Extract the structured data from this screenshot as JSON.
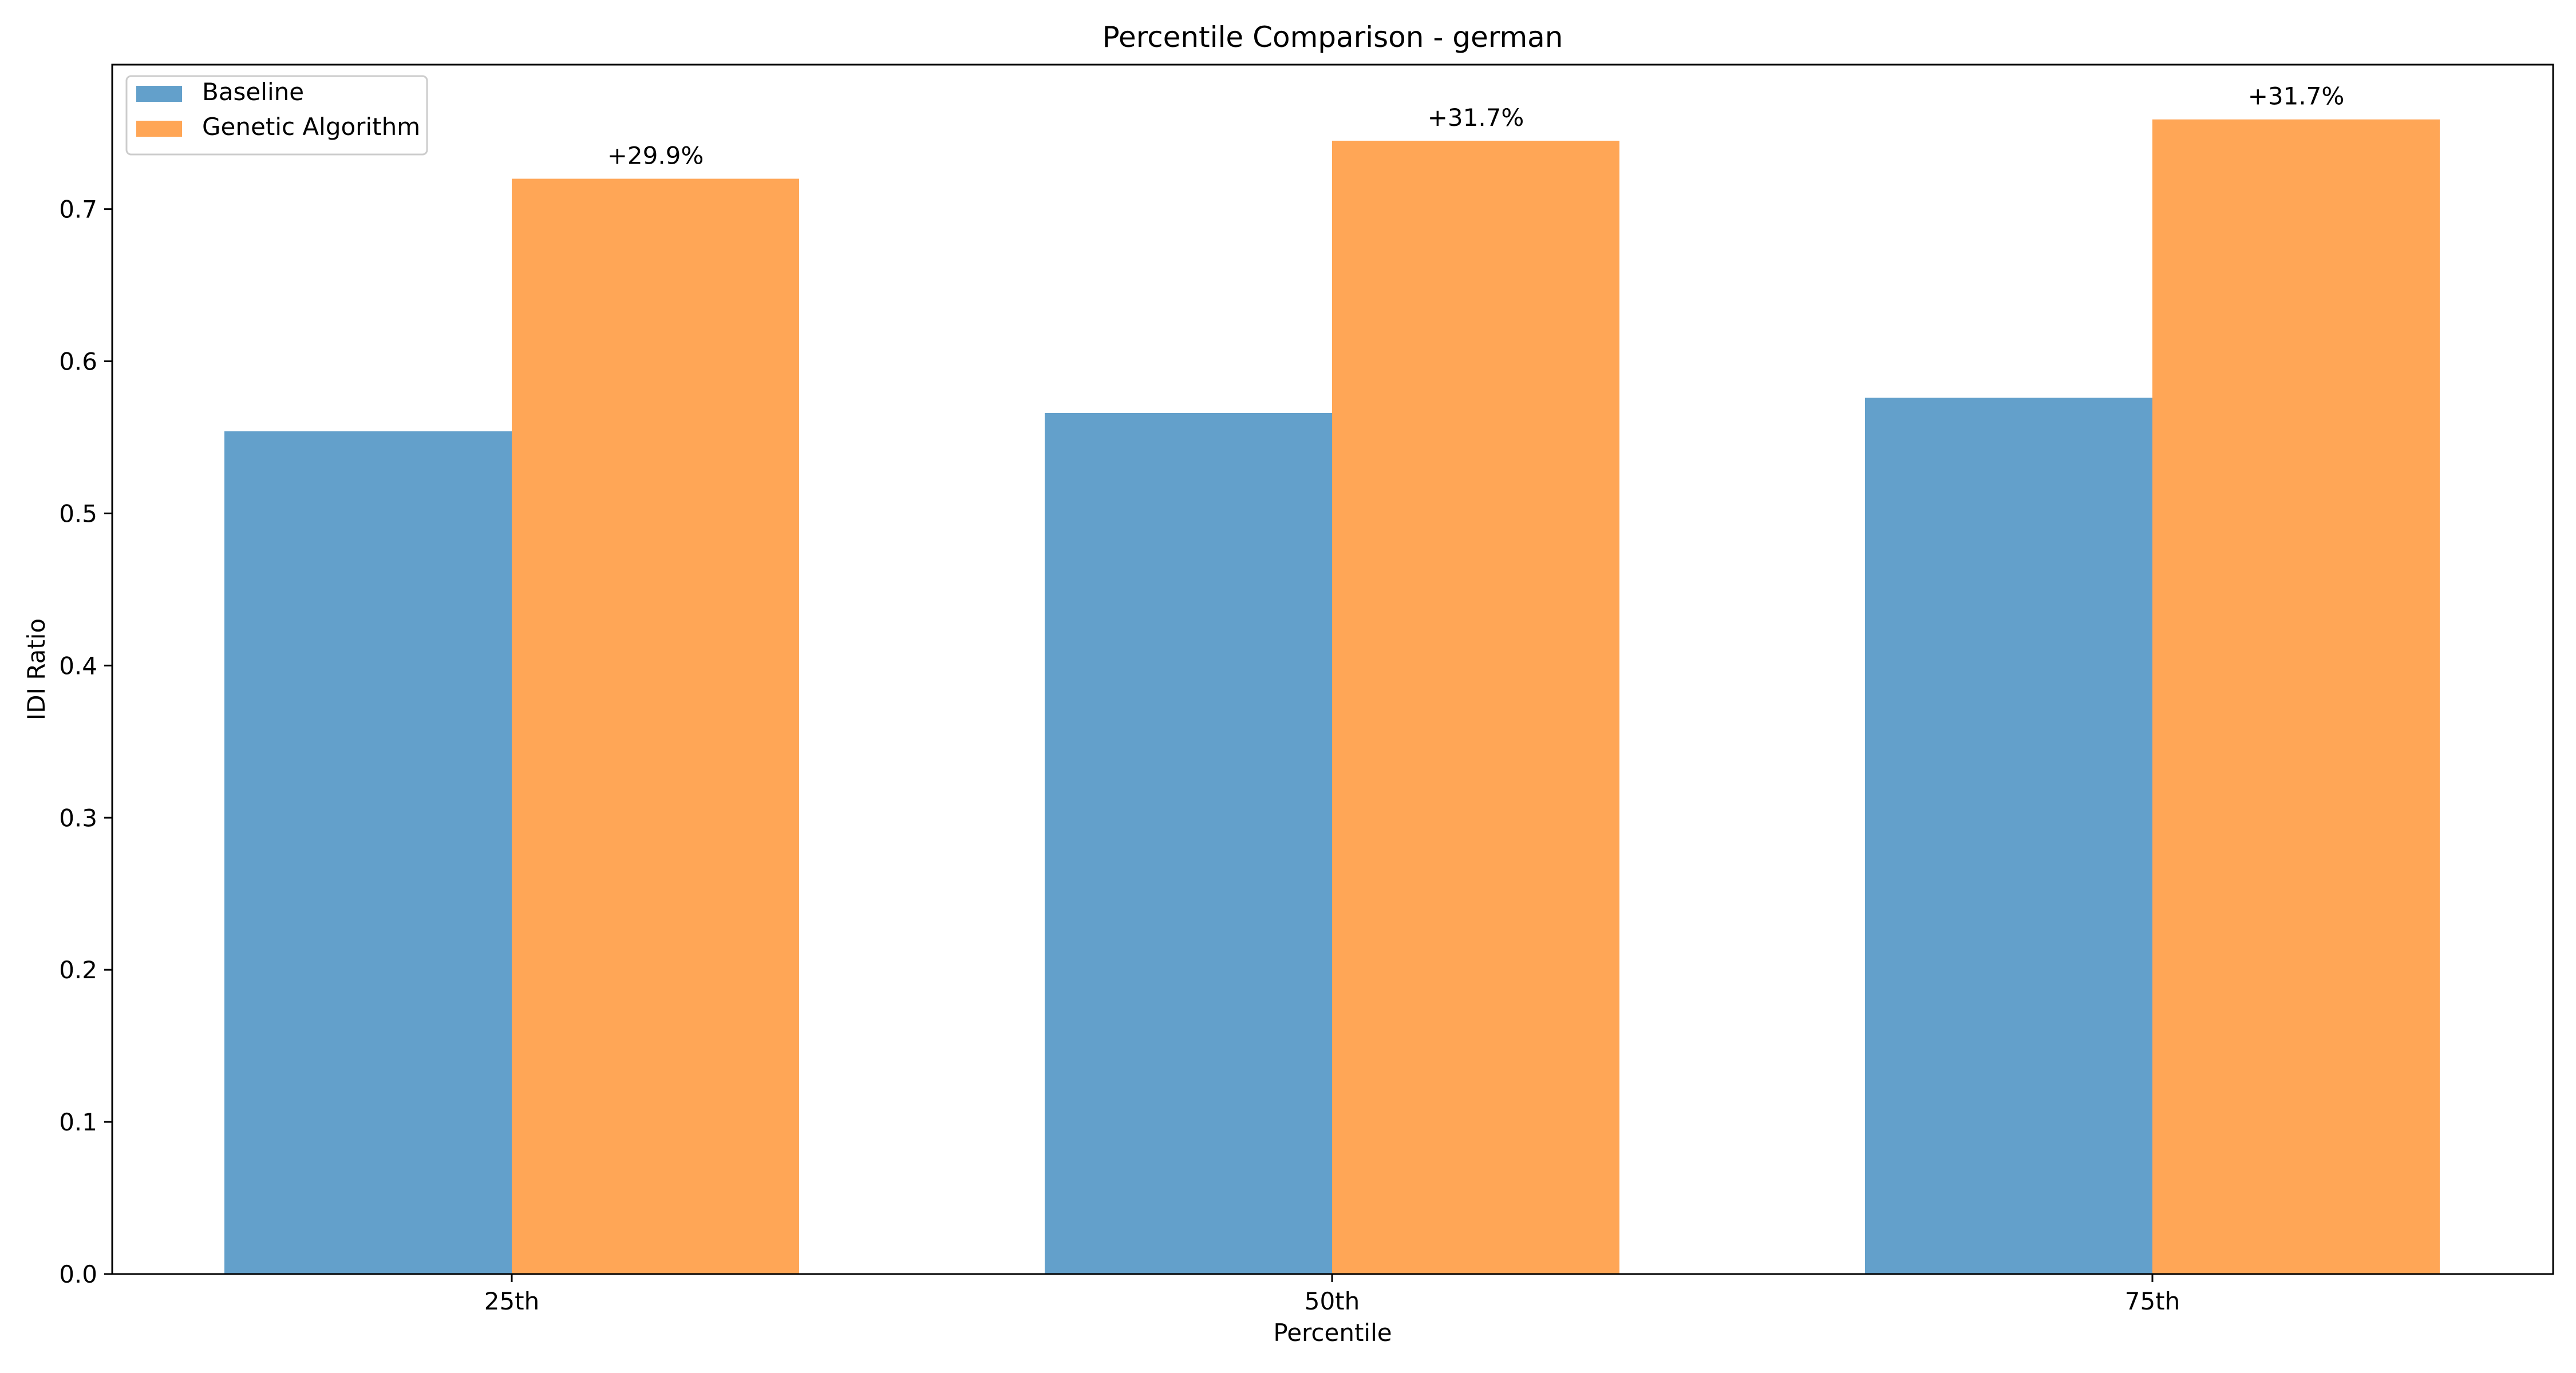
{
  "chart_data": {
    "type": "bar",
    "title": "Percentile Comparison - german",
    "xlabel": "Percentile",
    "ylabel": "IDI Ratio",
    "categories": [
      "25th",
      "50th",
      "75th"
    ],
    "series": [
      {
        "name": "Baseline",
        "values": [
          0.554,
          0.566,
          0.576
        ],
        "color": "#63a0cb"
      },
      {
        "name": "Genetic Algorithm",
        "values": [
          0.72,
          0.745,
          0.759
        ],
        "color": "#ffa656"
      }
    ],
    "bar_labels": [
      "+29.9%",
      "+31.7%",
      "+31.7%"
    ],
    "ylim": [
      0,
      0.795
    ],
    "yticks": [
      "0.0",
      "0.1",
      "0.2",
      "0.3",
      "0.4",
      "0.5",
      "0.6",
      "0.7"
    ],
    "grid": false,
    "legend_position": "top-left"
  }
}
